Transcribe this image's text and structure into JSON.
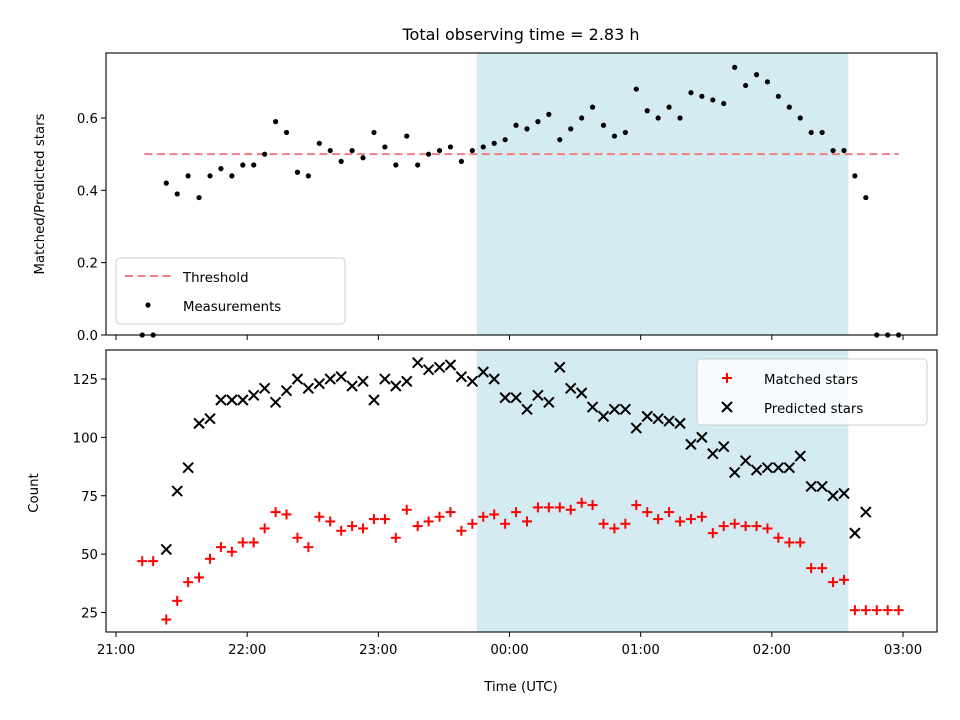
{
  "chart_data": [
    {
      "type": "scatter",
      "title": "Total observing time = 2.83 h",
      "xlabel": "",
      "ylabel": "Matched/Predicted stars",
      "xlim": [
        "21:00",
        "03:00"
      ],
      "ylim": [
        0,
        0.78
      ],
      "yticks": [
        0.0,
        0.2,
        0.4,
        0.6
      ],
      "ytick_labels": [
        "0.0",
        "0.2",
        "0.4",
        "0.6"
      ],
      "shaded_span": {
        "start": "23:45",
        "end": "02:35",
        "color": "#add8e6"
      },
      "threshold": {
        "name": "Threshold",
        "value": 0.5,
        "color": "#f08080"
      },
      "legend": {
        "placement": "lower-left",
        "entries": [
          "Threshold",
          "Measurements"
        ]
      },
      "series": [
        {
          "name": "Measurements",
          "color": "#000000",
          "x": [
            "21:12",
            "21:17",
            "21:23",
            "21:28",
            "21:33",
            "21:38",
            "21:43",
            "21:48",
            "21:53",
            "21:58",
            "22:03",
            "22:08",
            "22:13",
            "22:18",
            "22:23",
            "22:28",
            "22:33",
            "22:38",
            "22:43",
            "22:48",
            "22:53",
            "22:58",
            "23:03",
            "23:08",
            "23:13",
            "23:18",
            "23:23",
            "23:28",
            "23:33",
            "23:38",
            "23:43",
            "23:48",
            "23:53",
            "23:58",
            "00:03",
            "00:08",
            "00:13",
            "00:18",
            "00:23",
            "00:28",
            "00:33",
            "00:38",
            "00:43",
            "00:48",
            "00:53",
            "00:58",
            "01:03",
            "01:08",
            "01:13",
            "01:18",
            "01:23",
            "01:28",
            "01:33",
            "01:38",
            "01:43",
            "01:48",
            "01:53",
            "01:58",
            "02:03",
            "02:08",
            "02:13",
            "02:18",
            "02:23",
            "02:28",
            "02:33",
            "02:38",
            "02:43",
            "02:48",
            "02:53",
            "02:58"
          ],
          "y": [
            0.0,
            0.0,
            0.42,
            0.39,
            0.44,
            0.38,
            0.44,
            0.46,
            0.44,
            0.47,
            0.47,
            0.5,
            0.59,
            0.56,
            0.45,
            0.44,
            0.53,
            0.51,
            0.48,
            0.51,
            0.49,
            0.56,
            0.52,
            0.47,
            0.55,
            0.47,
            0.5,
            0.51,
            0.52,
            0.48,
            0.51,
            0.52,
            0.53,
            0.54,
            0.58,
            0.57,
            0.59,
            0.61,
            0.54,
            0.57,
            0.6,
            0.63,
            0.58,
            0.55,
            0.56,
            0.68,
            0.62,
            0.6,
            0.63,
            0.6,
            0.67,
            0.66,
            0.65,
            0.64,
            0.74,
            0.69,
            0.72,
            0.7,
            0.66,
            0.63,
            0.6,
            0.56,
            0.56,
            0.51,
            0.51,
            0.44,
            0.38,
            0.0,
            0.0,
            0.0
          ]
        }
      ]
    },
    {
      "type": "scatter",
      "xlabel": "Time (UTC)",
      "ylabel": "Count",
      "xlim": [
        "21:00",
        "03:00"
      ],
      "xtick_labels": [
        "21:00",
        "22:00",
        "23:00",
        "00:00",
        "01:00",
        "02:00",
        "03:00"
      ],
      "ylim": [
        17,
        138
      ],
      "yticks": [
        25,
        50,
        75,
        100,
        125
      ],
      "shaded_span": {
        "start": "23:45",
        "end": "02:35",
        "color": "#add8e6"
      },
      "legend": {
        "placement": "top-right",
        "entries": [
          "Matched stars",
          "Predicted stars"
        ]
      },
      "series": [
        {
          "name": "Matched stars",
          "marker": "+",
          "color": "#ff0000",
          "x": [
            "21:12",
            "21:17",
            "21:23",
            "21:28",
            "21:33",
            "21:38",
            "21:43",
            "21:48",
            "21:53",
            "21:58",
            "22:03",
            "22:08",
            "22:13",
            "22:18",
            "22:23",
            "22:28",
            "22:33",
            "22:38",
            "22:43",
            "22:48",
            "22:53",
            "22:58",
            "23:03",
            "23:08",
            "23:13",
            "23:18",
            "23:23",
            "23:28",
            "23:33",
            "23:38",
            "23:43",
            "23:48",
            "23:53",
            "23:58",
            "00:03",
            "00:08",
            "00:13",
            "00:18",
            "00:23",
            "00:28",
            "00:33",
            "00:38",
            "00:43",
            "00:48",
            "00:53",
            "00:58",
            "01:03",
            "01:08",
            "01:13",
            "01:18",
            "01:23",
            "01:28",
            "01:33",
            "01:38",
            "01:43",
            "01:48",
            "01:53",
            "01:58",
            "02:03",
            "02:08",
            "02:13",
            "02:18",
            "02:23",
            "02:28",
            "02:33",
            "02:38",
            "02:43",
            "02:48",
            "02:53",
            "02:58"
          ],
          "y": [
            47,
            47,
            22,
            30,
            38,
            40,
            48,
            53,
            51,
            55,
            55,
            61,
            68,
            67,
            57,
            53,
            66,
            64,
            60,
            62,
            61,
            65,
            65,
            57,
            69,
            62,
            64,
            66,
            68,
            60,
            63,
            66,
            67,
            63,
            68,
            64,
            70,
            70,
            70,
            69,
            72,
            71,
            63,
            61,
            63,
            71,
            68,
            65,
            68,
            64,
            65,
            66,
            59,
            62,
            63,
            62,
            62,
            61,
            57,
            55,
            55,
            44,
            44,
            38,
            39,
            26,
            26,
            26,
            26,
            26
          ]
        },
        {
          "name": "Predicted stars",
          "marker": "x",
          "color": "#000000",
          "x": [
            "21:23",
            "21:28",
            "21:33",
            "21:38",
            "21:43",
            "21:48",
            "21:53",
            "21:58",
            "22:03",
            "22:08",
            "22:13",
            "22:18",
            "22:23",
            "22:28",
            "22:33",
            "22:38",
            "22:43",
            "22:48",
            "22:53",
            "22:58",
            "23:03",
            "23:08",
            "23:13",
            "23:18",
            "23:23",
            "23:28",
            "23:33",
            "23:38",
            "23:43",
            "23:48",
            "23:53",
            "23:58",
            "00:03",
            "00:08",
            "00:13",
            "00:18",
            "00:23",
            "00:28",
            "00:33",
            "00:38",
            "00:43",
            "00:48",
            "00:53",
            "00:58",
            "01:03",
            "01:08",
            "01:13",
            "01:18",
            "01:23",
            "01:28",
            "01:33",
            "01:38",
            "01:43",
            "01:48",
            "01:53",
            "01:58",
            "02:03",
            "02:08",
            "02:13",
            "02:18",
            "02:23",
            "02:28",
            "02:33",
            "02:38",
            "02:43"
          ],
          "y": [
            52,
            77,
            87,
            106,
            108,
            116,
            116,
            116,
            118,
            121,
            115,
            120,
            125,
            121,
            123,
            125,
            126,
            122,
            124,
            116,
            125,
            122,
            124,
            132,
            129,
            130,
            131,
            126,
            124,
            128,
            125,
            117,
            117,
            112,
            118,
            115,
            130,
            121,
            119,
            113,
            109,
            112,
            112,
            104,
            109,
            108,
            107,
            106,
            97,
            100,
            93,
            96,
            85,
            90,
            86,
            87,
            87,
            87,
            92,
            79,
            79,
            75,
            76,
            59,
            68
          ]
        }
      ]
    }
  ]
}
